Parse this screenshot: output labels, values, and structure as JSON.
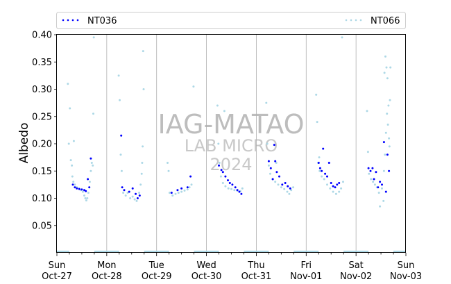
{
  "chart_data": {
    "type": "scatter",
    "ylabel": "Albedo",
    "ylim": [
      0,
      0.4
    ],
    "yticks": [
      0.05,
      0.1,
      0.15,
      0.2,
      0.25,
      0.3,
      0.35,
      0.4
    ],
    "xlim": [
      0,
      7
    ],
    "xticks": [
      {
        "x": 0,
        "day": "Sun",
        "date": "Oct-27"
      },
      {
        "x": 1,
        "day": "Mon",
        "date": "Oct-28"
      },
      {
        "x": 2,
        "day": "Tue",
        "date": "Oct-29"
      },
      {
        "x": 3,
        "day": "Wed",
        "date": "Oct-30"
      },
      {
        "x": 4,
        "day": "Thu",
        "date": "Oct-31"
      },
      {
        "x": 5,
        "day": "Fri",
        "date": "Nov-01"
      },
      {
        "x": 6,
        "day": "Sat",
        "date": "Nov-02"
      },
      {
        "x": 7,
        "day": "Sun",
        "date": "Nov-03"
      }
    ],
    "grid": "vertical",
    "legend_position": "top",
    "watermark": [
      "IAG-MATAO",
      "LAB MICRO",
      "2024"
    ],
    "night_band_color": "#add8e6",
    "series": [
      {
        "name": "NT036",
        "color": "#0000ff",
        "points": [
          [
            0.32,
            0.125
          ],
          [
            0.36,
            0.12
          ],
          [
            0.4,
            0.118
          ],
          [
            0.45,
            0.117
          ],
          [
            0.5,
            0.116
          ],
          [
            0.55,
            0.115
          ],
          [
            0.58,
            0.113
          ],
          [
            0.62,
            0.135
          ],
          [
            0.65,
            0.12
          ],
          [
            0.68,
            0.173
          ],
          [
            1.29,
            0.215
          ],
          [
            1.31,
            0.12
          ],
          [
            1.35,
            0.115
          ],
          [
            1.45,
            0.112
          ],
          [
            1.52,
            0.118
          ],
          [
            1.58,
            0.108
          ],
          [
            1.62,
            0.1
          ],
          [
            1.66,
            0.105
          ],
          [
            2.3,
            0.11
          ],
          [
            2.42,
            0.115
          ],
          [
            2.5,
            0.118
          ],
          [
            2.62,
            0.12
          ],
          [
            2.68,
            0.14
          ],
          [
            3.25,
            0.16
          ],
          [
            3.3,
            0.152
          ],
          [
            3.33,
            0.148
          ],
          [
            3.38,
            0.14
          ],
          [
            3.43,
            0.133
          ],
          [
            3.47,
            0.128
          ],
          [
            3.52,
            0.125
          ],
          [
            3.58,
            0.12
          ],
          [
            3.62,
            0.115
          ],
          [
            3.66,
            0.112
          ],
          [
            3.7,
            0.108
          ],
          [
            4.25,
            0.168
          ],
          [
            4.29,
            0.155
          ],
          [
            4.33,
            0.135
          ],
          [
            4.36,
            0.198
          ],
          [
            4.38,
            0.168
          ],
          [
            4.41,
            0.148
          ],
          [
            4.46,
            0.14
          ],
          [
            4.52,
            0.125
          ],
          [
            4.58,
            0.128
          ],
          [
            4.63,
            0.122
          ],
          [
            4.68,
            0.118
          ],
          [
            5.25,
            0.165
          ],
          [
            5.28,
            0.155
          ],
          [
            5.31,
            0.15
          ],
          [
            5.34,
            0.191
          ],
          [
            5.38,
            0.145
          ],
          [
            5.42,
            0.14
          ],
          [
            5.46,
            0.165
          ],
          [
            5.5,
            0.128
          ],
          [
            5.54,
            0.122
          ],
          [
            5.58,
            0.12
          ],
          [
            5.62,
            0.125
          ],
          [
            5.66,
            0.128
          ],
          [
            6.25,
            0.155
          ],
          [
            6.29,
            0.15
          ],
          [
            6.33,
            0.155
          ],
          [
            6.36,
            0.135
          ],
          [
            6.4,
            0.148
          ],
          [
            6.44,
            0.12
          ],
          [
            6.48,
            0.13
          ],
          [
            6.52,
            0.125
          ],
          [
            6.56,
            0.203
          ],
          [
            6.6,
            0.112
          ],
          [
            6.63,
            0.18
          ],
          [
            6.66,
            0.15
          ]
        ]
      },
      {
        "name": "NT066",
        "color": "#add8e6",
        "points": [
          [
            0.22,
            0.31
          ],
          [
            0.26,
            0.265
          ],
          [
            0.24,
            0.2
          ],
          [
            0.28,
            0.17
          ],
          [
            0.3,
            0.16
          ],
          [
            0.31,
            0.14
          ],
          [
            0.33,
            0.13
          ],
          [
            0.36,
            0.125
          ],
          [
            0.4,
            0.12
          ],
          [
            0.44,
            0.118
          ],
          [
            0.48,
            0.115
          ],
          [
            0.52,
            0.112
          ],
          [
            0.55,
            0.105
          ],
          [
            0.57,
            0.1
          ],
          [
            0.59,
            0.096
          ],
          [
            0.61,
            0.1
          ],
          [
            0.63,
            0.11
          ],
          [
            0.66,
            0.13
          ],
          [
            0.68,
            0.15
          ],
          [
            0.7,
            0.165
          ],
          [
            0.72,
            0.16
          ],
          [
            0.74,
            0.395
          ],
          [
            0.73,
            0.255
          ],
          [
            0.34,
            0.205
          ],
          [
            1.24,
            0.325
          ],
          [
            1.26,
            0.28
          ],
          [
            1.28,
            0.18
          ],
          [
            1.3,
            0.15
          ],
          [
            1.33,
            0.11
          ],
          [
            1.38,
            0.105
          ],
          [
            1.42,
            0.11
          ],
          [
            1.47,
            0.1
          ],
          [
            1.52,
            0.103
          ],
          [
            1.56,
            0.098
          ],
          [
            1.6,
            0.095
          ],
          [
            1.65,
            0.11
          ],
          [
            1.68,
            0.125
          ],
          [
            1.7,
            0.145
          ],
          [
            1.72,
            0.195
          ],
          [
            1.73,
            0.37
          ],
          [
            1.74,
            0.3
          ],
          [
            1.71,
            0.165
          ],
          [
            2.22,
            0.165
          ],
          [
            2.24,
            0.15
          ],
          [
            2.26,
            0.11
          ],
          [
            2.32,
            0.105
          ],
          [
            2.38,
            0.108
          ],
          [
            2.44,
            0.11
          ],
          [
            2.5,
            0.112
          ],
          [
            2.56,
            0.114
          ],
          [
            2.62,
            0.116
          ],
          [
            2.66,
            0.12
          ],
          [
            2.7,
            0.125
          ],
          [
            2.74,
            0.305
          ],
          [
            3.22,
            0.27
          ],
          [
            3.24,
            0.2
          ],
          [
            3.26,
            0.165
          ],
          [
            3.29,
            0.14
          ],
          [
            3.33,
            0.128
          ],
          [
            3.38,
            0.122
          ],
          [
            3.44,
            0.118
          ],
          [
            3.5,
            0.117
          ],
          [
            3.56,
            0.115
          ],
          [
            3.62,
            0.114
          ],
          [
            3.68,
            0.113
          ],
          [
            3.72,
            0.118
          ],
          [
            3.36,
            0.26
          ],
          [
            4.2,
            0.275
          ],
          [
            4.22,
            0.2
          ],
          [
            4.25,
            0.16
          ],
          [
            4.28,
            0.145
          ],
          [
            4.33,
            0.135
          ],
          [
            4.38,
            0.13
          ],
          [
            4.44,
            0.125
          ],
          [
            4.5,
            0.12
          ],
          [
            4.56,
            0.117
          ],
          [
            4.62,
            0.112
          ],
          [
            4.66,
            0.108
          ],
          [
            4.7,
            0.115
          ],
          [
            4.74,
            0.12
          ],
          [
            4.4,
            0.165
          ],
          [
            5.2,
            0.29
          ],
          [
            5.22,
            0.24
          ],
          [
            5.24,
            0.165
          ],
          [
            5.27,
            0.15
          ],
          [
            5.31,
            0.14
          ],
          [
            5.36,
            0.135
          ],
          [
            5.42,
            0.125
          ],
          [
            5.48,
            0.118
          ],
          [
            5.54,
            0.112
          ],
          [
            5.6,
            0.108
          ],
          [
            5.66,
            0.112
          ],
          [
            5.7,
            0.118
          ],
          [
            5.74,
            0.13
          ],
          [
            5.72,
            0.395
          ],
          [
            5.26,
            0.175
          ],
          [
            6.22,
            0.26
          ],
          [
            6.24,
            0.185
          ],
          [
            6.26,
            0.145
          ],
          [
            6.3,
            0.135
          ],
          [
            6.34,
            0.13
          ],
          [
            6.38,
            0.125
          ],
          [
            6.42,
            0.12
          ],
          [
            6.46,
            0.11
          ],
          [
            6.48,
            0.085
          ],
          [
            6.52,
            0.118
          ],
          [
            6.56,
            0.15
          ],
          [
            6.58,
            0.18
          ],
          [
            6.6,
            0.22
          ],
          [
            6.62,
            0.255
          ],
          [
            6.64,
            0.235
          ],
          [
            6.66,
            0.21
          ],
          [
            6.68,
            0.28
          ],
          [
            6.59,
            0.36
          ],
          [
            6.61,
            0.34
          ],
          [
            6.63,
            0.32
          ],
          [
            6.57,
            0.33
          ],
          [
            6.65,
            0.27
          ],
          [
            6.67,
            0.195
          ],
          [
            6.69,
            0.34
          ],
          [
            6.55,
            0.095
          ]
        ]
      }
    ]
  }
}
